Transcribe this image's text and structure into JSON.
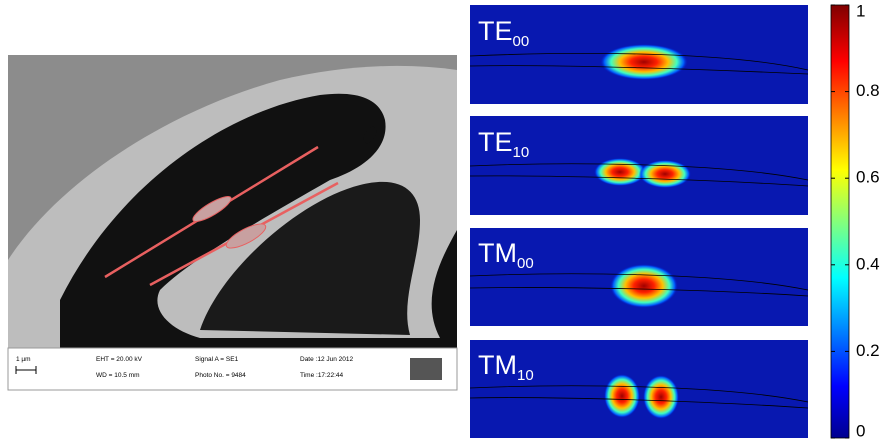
{
  "sem_image": {
    "scale_bar": "1 µm",
    "info": [
      "EHT = 20.00 kV",
      "WD = 10.5 mm",
      "Signal A = SE1",
      "Photo No. = 9484",
      "Date :12 Jun 2012",
      "Time :17:22:44"
    ]
  },
  "modes": [
    {
      "label": "TE",
      "subscript": "00"
    },
    {
      "label": "TE",
      "subscript": "10"
    },
    {
      "label": "TM",
      "subscript": "00"
    },
    {
      "label": "TM",
      "subscript": "10"
    }
  ],
  "colorbar": {
    "lim": [
      0,
      1
    ],
    "ticks": [
      0,
      0.2,
      0.4,
      0.6,
      0.8,
      1
    ]
  }
}
